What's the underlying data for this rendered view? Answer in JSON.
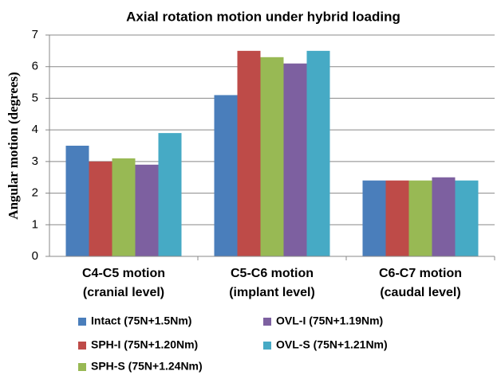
{
  "chart_data": {
    "type": "bar",
    "title": "Axial rotation motion under hybrid loading",
    "y_label": "Angular motion (degrees)",
    "categories": [
      "C4-C5 motion\n(cranial level)",
      "C5-C6 motion\n(implant level)",
      "C6-C7 motion\n(caudal level)"
    ],
    "series": [
      {
        "name": "Intact (75N+1.5Nm)",
        "color": "#4a7ebb",
        "values": [
          3.5,
          5.1,
          2.4
        ]
      },
      {
        "name": "SPH-I (75N+1.20Nm)",
        "color": "#be4b48",
        "values": [
          3.0,
          6.5,
          2.4
        ]
      },
      {
        "name": "SPH-S (75N+1.24Nm)",
        "color": "#98b954",
        "values": [
          3.1,
          6.3,
          2.4
        ]
      },
      {
        "name": "OVL-I (75N+1.19Nm)",
        "color": "#7d60a0",
        "values": [
          2.9,
          6.1,
          2.5
        ]
      },
      {
        "name": "OVL-S (75N+1.21Nm)",
        "color": "#46aac5",
        "values": [
          3.9,
          6.5,
          2.4
        ]
      }
    ],
    "ylim": [
      0,
      7
    ],
    "yticks": [
      0,
      1,
      2,
      3,
      4,
      5,
      6,
      7
    ],
    "grid": true
  }
}
